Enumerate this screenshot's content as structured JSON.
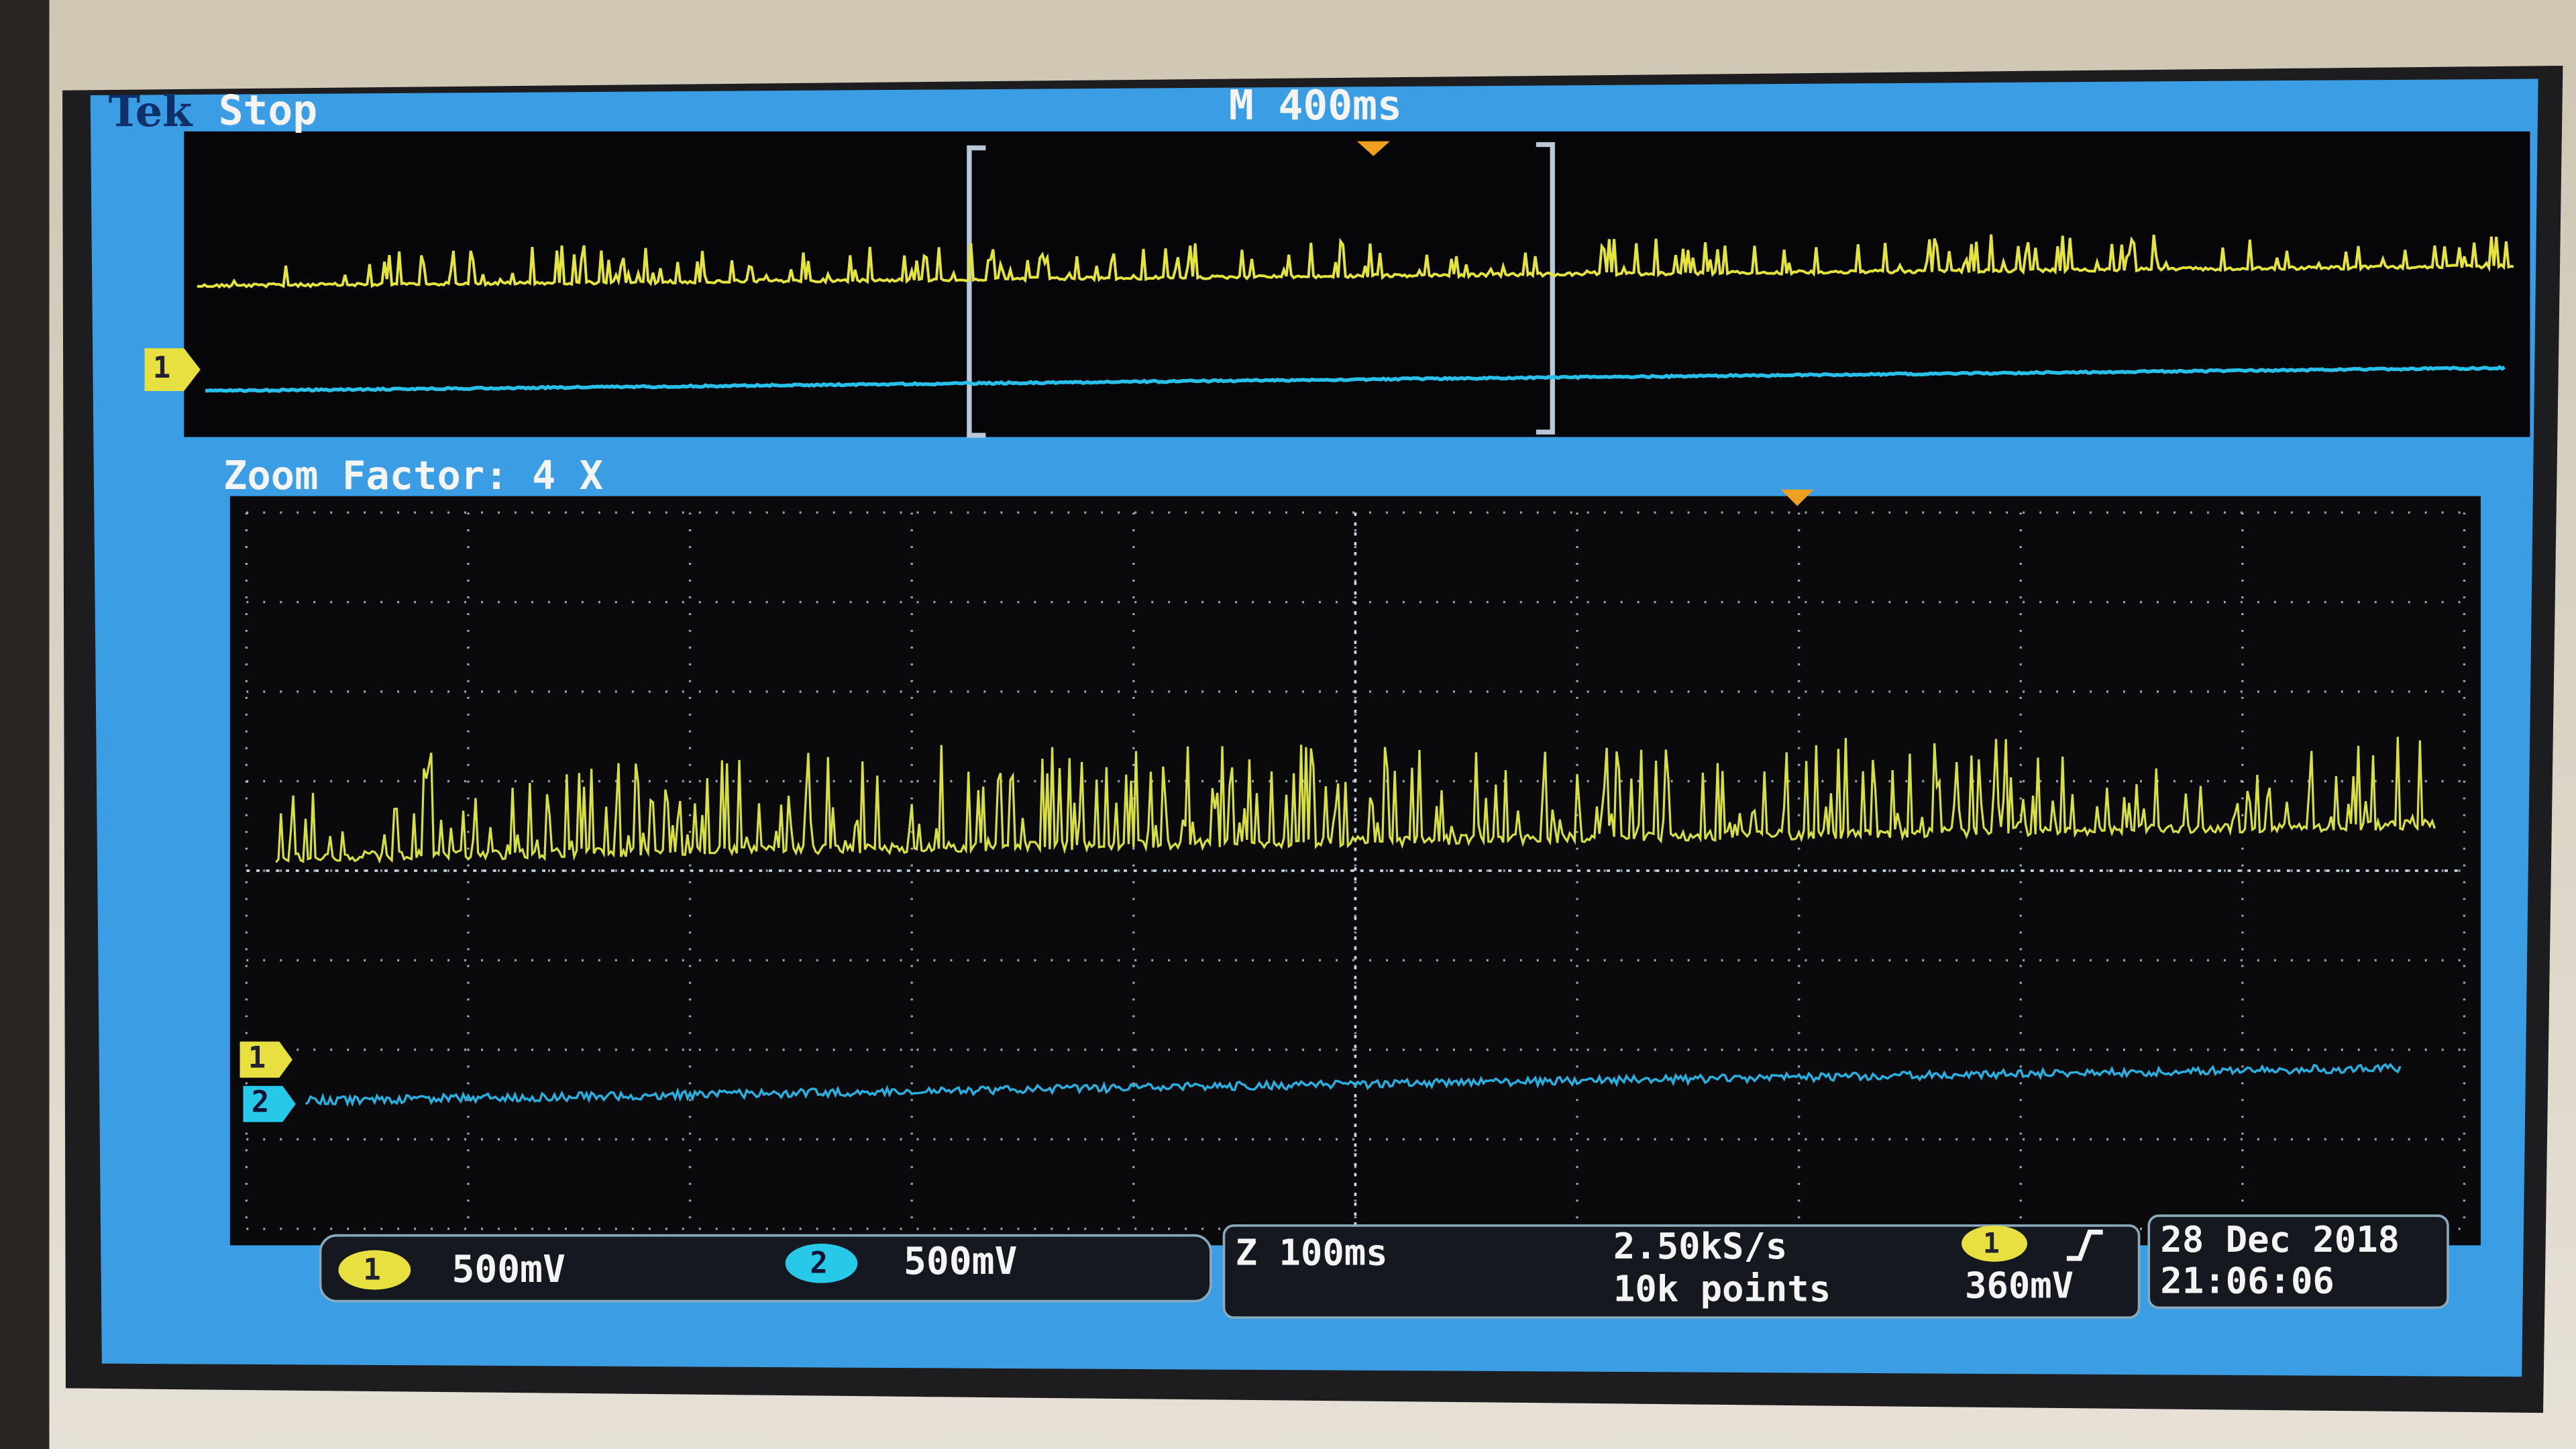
{
  "header": {
    "brand": "Tek",
    "status": "Stop",
    "timebase": "M 400ms"
  },
  "zoom": {
    "label": "Zoom Factor: 4 X"
  },
  "markers": {
    "overview_ch1": "1",
    "main_ch1": "1",
    "main_ch2": "2"
  },
  "readout": {
    "ch1": {
      "number": "1",
      "scale": "500mV"
    },
    "ch2": {
      "number": "2",
      "scale": "500mV"
    },
    "zoom_timebase": "Z 100ms",
    "sample_rate": "2.50kS/s",
    "record_length": "10k points",
    "trigger": {
      "source": "1",
      "level": "360mV"
    },
    "date": "28 Dec 2018",
    "time": "21:06:06"
  }
}
